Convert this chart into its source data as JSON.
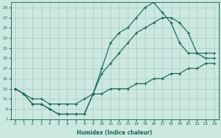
{
  "xlabel": "Humidex (Indice chaleur)",
  "bg_color": "#cce8e0",
  "grid_color": "#aacfc8",
  "line_color": "#1a6655",
  "xlim": [
    -0.5,
    23.5
  ],
  "ylim": [
    7,
    30
  ],
  "xticks": [
    0,
    1,
    2,
    3,
    4,
    5,
    6,
    7,
    8,
    9,
    10,
    11,
    12,
    13,
    14,
    15,
    16,
    17,
    18,
    19,
    20,
    21,
    22,
    23
  ],
  "yticks": [
    7,
    9,
    11,
    13,
    15,
    17,
    19,
    21,
    23,
    25,
    27,
    29
  ],
  "line1_x": [
    0,
    1,
    2,
    3,
    4,
    5,
    6,
    7,
    8,
    9,
    10,
    11,
    12,
    13,
    14,
    15,
    16,
    17,
    18,
    19,
    20,
    21,
    22,
    23
  ],
  "line1_y": [
    13,
    12,
    10,
    10,
    9,
    8,
    8,
    8,
    8,
    12,
    17,
    22,
    24,
    25,
    27,
    29,
    30,
    28,
    26,
    22,
    20,
    20,
    19,
    19
  ],
  "line2_x": [
    0,
    1,
    2,
    3,
    4,
    5,
    6,
    7,
    8,
    9,
    10,
    11,
    12,
    13,
    14,
    15,
    16,
    17,
    18,
    19,
    20,
    21,
    22,
    23
  ],
  "line2_y": [
    13,
    12,
    10,
    10,
    9,
    8,
    8,
    8,
    8,
    12,
    16,
    18,
    20,
    22,
    24,
    25,
    26,
    27,
    27,
    26,
    24,
    20,
    20,
    20
  ],
  "line3_x": [
    0,
    1,
    2,
    3,
    4,
    5,
    6,
    7,
    8,
    9,
    10,
    11,
    12,
    13,
    14,
    15,
    16,
    17,
    18,
    19,
    20,
    21,
    22,
    23
  ],
  "line3_y": [
    13,
    12,
    11,
    11,
    10,
    10,
    10,
    10,
    11,
    12,
    12,
    13,
    13,
    13,
    14,
    14,
    15,
    15,
    16,
    16,
    17,
    17,
    18,
    18
  ]
}
